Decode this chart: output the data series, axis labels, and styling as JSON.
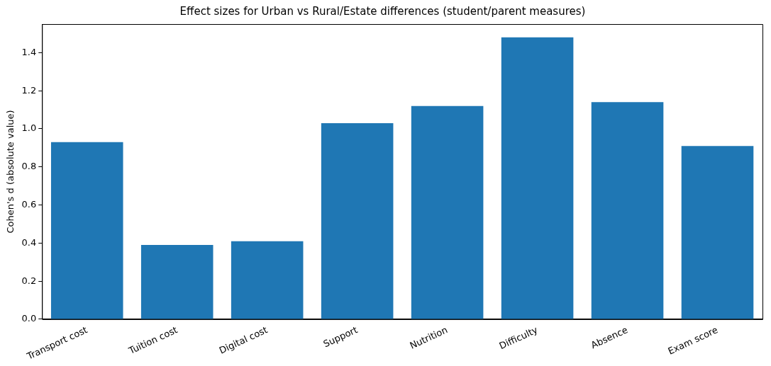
{
  "chart_data": {
    "type": "bar",
    "title": "Effect sizes for Urban vs Rural/Estate differences (student/parent measures)",
    "ylabel": "Cohen's d (absolute value)",
    "categories": [
      "Transport cost",
      "Tuition cost",
      "Digital cost",
      "Support",
      "Nutrition",
      "Difficulty",
      "Absence",
      "Exam score"
    ],
    "values": [
      0.93,
      0.39,
      0.41,
      1.03,
      1.12,
      1.48,
      1.14,
      0.91
    ],
    "color": "#1f77b4",
    "ylim": [
      0,
      1.55
    ],
    "yticks": [
      {
        "value": 0,
        "label": "0.0"
      },
      0.2,
      0.4,
      0.6,
      0.8,
      {
        "value": 1,
        "label": "1.0"
      },
      1.2,
      1.4
    ],
    "grid": false,
    "legend": false
  }
}
